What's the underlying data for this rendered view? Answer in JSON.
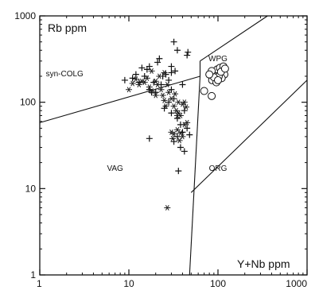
{
  "chart_data": {
    "type": "scatter",
    "title": "",
    "xlabel": "Y+Nb ppm",
    "ylabel": "Rb ppm",
    "x_scale": "log",
    "y_scale": "log",
    "xlim": [
      1,
      1000
    ],
    "ylim": [
      1,
      1000
    ],
    "x_ticks": [
      "1",
      "10",
      "100",
      "1000"
    ],
    "y_ticks": [
      "1",
      "10",
      "100",
      "1000"
    ],
    "grid": false,
    "legend": "none",
    "field_labels": [
      {
        "text": "syn-COLG",
        "x": 1.9,
        "y": 200
      },
      {
        "text": "WPG",
        "x": 100,
        "y": 300
      },
      {
        "text": "VAG",
        "x": 7,
        "y": 16
      },
      {
        "text": "ORG",
        "x": 100,
        "y": 16
      }
    ],
    "boundaries": [
      {
        "name": "VAG / syn-COLG",
        "points": [
          [
            1,
            58
          ],
          [
            63,
            200
          ],
          [
            63,
            300
          ]
        ]
      },
      {
        "name": "syn-COLG / WPG",
        "points": [
          [
            63,
            300
          ],
          [
            360,
            1000
          ]
        ]
      },
      {
        "name": "VAG / WPG",
        "points": [
          [
            63,
            200
          ],
          [
            48,
            1
          ]
        ]
      },
      {
        "name": "WPG / ORG",
        "points": [
          [
            50,
            9
          ],
          [
            1000,
            180
          ]
        ]
      }
    ],
    "series": [
      {
        "marker": "plus",
        "points": [
          [
            9,
            180
          ],
          [
            11,
            190
          ],
          [
            12,
            210
          ],
          [
            13,
            170
          ],
          [
            14,
            250
          ],
          [
            15,
            200
          ],
          [
            16,
            240
          ],
          [
            17,
            260
          ],
          [
            17,
            140
          ],
          [
            18,
            130
          ],
          [
            19,
            170
          ],
          [
            20,
            130
          ],
          [
            21,
            290
          ],
          [
            22,
            320
          ],
          [
            23,
            160
          ],
          [
            24,
            200
          ],
          [
            26,
            210
          ],
          [
            28,
            180
          ],
          [
            30,
            260
          ],
          [
            33,
            230
          ],
          [
            35,
            400
          ],
          [
            40,
            160
          ],
          [
            46,
            380
          ],
          [
            30,
            140
          ],
          [
            32,
            110
          ],
          [
            28,
            100
          ],
          [
            25,
            85
          ],
          [
            30,
            75
          ],
          [
            35,
            65
          ],
          [
            42,
            80
          ],
          [
            38,
            55
          ],
          [
            45,
            50
          ],
          [
            40,
            45
          ],
          [
            35,
            40
          ],
          [
            32,
            35
          ],
          [
            38,
            30
          ],
          [
            42,
            27
          ],
          [
            48,
            42
          ],
          [
            17,
            38
          ],
          [
            36,
            16
          ],
          [
            32,
            500
          ],
          [
            45,
            350
          ],
          [
            30,
            220
          ]
        ]
      },
      {
        "marker": "star",
        "points": [
          [
            10,
            140
          ],
          [
            11,
            165
          ],
          [
            12,
            185
          ],
          [
            13,
            160
          ],
          [
            14,
            175
          ],
          [
            15,
            170
          ],
          [
            16,
            190
          ],
          [
            17,
            150
          ],
          [
            18,
            230
          ],
          [
            18,
            135
          ],
          [
            20,
            175
          ],
          [
            21,
            160
          ],
          [
            22,
            200
          ],
          [
            23,
            140
          ],
          [
            24,
            120
          ],
          [
            25,
            105
          ],
          [
            25,
            220
          ],
          [
            27,
            160
          ],
          [
            28,
            130
          ],
          [
            30,
            110
          ],
          [
            32,
            90
          ],
          [
            34,
            80
          ],
          [
            36,
            75
          ],
          [
            38,
            70
          ],
          [
            40,
            95
          ],
          [
            42,
            100
          ],
          [
            44,
            88
          ],
          [
            36,
            100
          ],
          [
            33,
            125
          ],
          [
            30,
            45
          ],
          [
            32,
            43
          ],
          [
            35,
            48
          ],
          [
            38,
            44
          ],
          [
            42,
            55
          ],
          [
            45,
            58
          ],
          [
            40,
            40
          ],
          [
            37,
            36
          ],
          [
            31,
            38
          ],
          [
            27,
            6
          ],
          [
            35,
            70
          ],
          [
            26,
            90
          ],
          [
            20,
            120
          ]
        ]
      },
      {
        "marker": "circle",
        "points": [
          [
            86,
            180
          ],
          [
            92,
            210
          ],
          [
            98,
            240
          ],
          [
            105,
            250
          ],
          [
            112,
            230
          ],
          [
            118,
            210
          ],
          [
            110,
            190
          ],
          [
            102,
            200
          ],
          [
            96,
            170
          ],
          [
            115,
            260
          ],
          [
            108,
            225
          ],
          [
            90,
            195
          ],
          [
            85,
            230
          ],
          [
            100,
            180
          ],
          [
            80,
            210
          ],
          [
            70,
            135
          ],
          [
            85,
            118
          ],
          [
            120,
            245
          ]
        ]
      }
    ]
  }
}
